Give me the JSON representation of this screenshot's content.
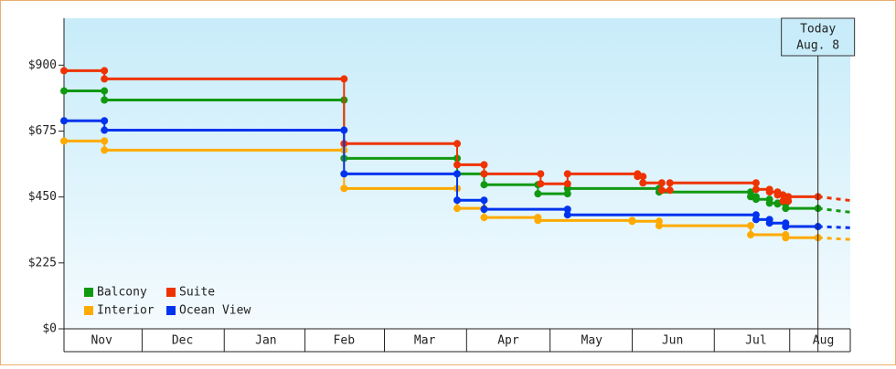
{
  "chart_data": {
    "type": "step",
    "ylim": [
      0,
      1060
    ],
    "yticks": [
      {
        "value": 0,
        "label": "$0"
      },
      {
        "value": 225,
        "label": "$225"
      },
      {
        "value": 450,
        "label": "$450"
      },
      {
        "value": 675,
        "label": "$675"
      },
      {
        "value": 900,
        "label": "$900"
      }
    ],
    "xlim": [
      0,
      292
    ],
    "xticks": [
      {
        "value": 14,
        "label": "Nov"
      },
      {
        "value": 44,
        "label": "Dec"
      },
      {
        "value": 75,
        "label": "Jan"
      },
      {
        "value": 104,
        "label": "Feb"
      },
      {
        "value": 134,
        "label": "Mar"
      },
      {
        "value": 165,
        "label": "Apr"
      },
      {
        "value": 196,
        "label": "May"
      },
      {
        "value": 226,
        "label": "Jun"
      },
      {
        "value": 257,
        "label": "Jul"
      },
      {
        "value": 282,
        "label": "Aug"
      }
    ],
    "today": {
      "x": 280,
      "label": "Today",
      "date": "Aug. 8"
    },
    "legend": "lower left",
    "series": [
      {
        "name": "Balcony",
        "color": "#119911",
        "x": [
          0,
          15,
          104,
          146,
          156,
          176,
          187,
          221,
          255,
          257,
          262,
          265,
          268,
          280
        ],
        "values": [
          812,
          781,
          582,
          529,
          492,
          461,
          479,
          467,
          451,
          442,
          429,
          426,
          411,
          411
        ],
        "forecast": 398
      },
      {
        "name": "Suite",
        "color": "#ee3300",
        "x": [
          0,
          15,
          104,
          146,
          156,
          177,
          187,
          213,
          215,
          222,
          225,
          257,
          262,
          265,
          267,
          269,
          280
        ],
        "values": [
          881,
          853,
          632,
          560,
          529,
          495,
          529,
          520,
          498,
          473,
          498,
          476,
          467,
          457,
          436,
          451,
          451
        ],
        "forecast": 438
      },
      {
        "name": "Interior",
        "color": "#ffaa00",
        "x": [
          0,
          15,
          104,
          146,
          156,
          176,
          211,
          221,
          255,
          268,
          280
        ],
        "values": [
          641,
          610,
          479,
          411,
          380,
          370,
          367,
          352,
          321,
          311,
          311
        ],
        "forecast": 305
      },
      {
        "name": "Ocean View",
        "color": "#0033ee",
        "x": [
          0,
          15,
          104,
          146,
          156,
          187,
          257,
          262,
          268,
          280
        ],
        "values": [
          710,
          678,
          529,
          439,
          408,
          389,
          373,
          361,
          349,
          349
        ],
        "forecast": 345
      }
    ]
  }
}
